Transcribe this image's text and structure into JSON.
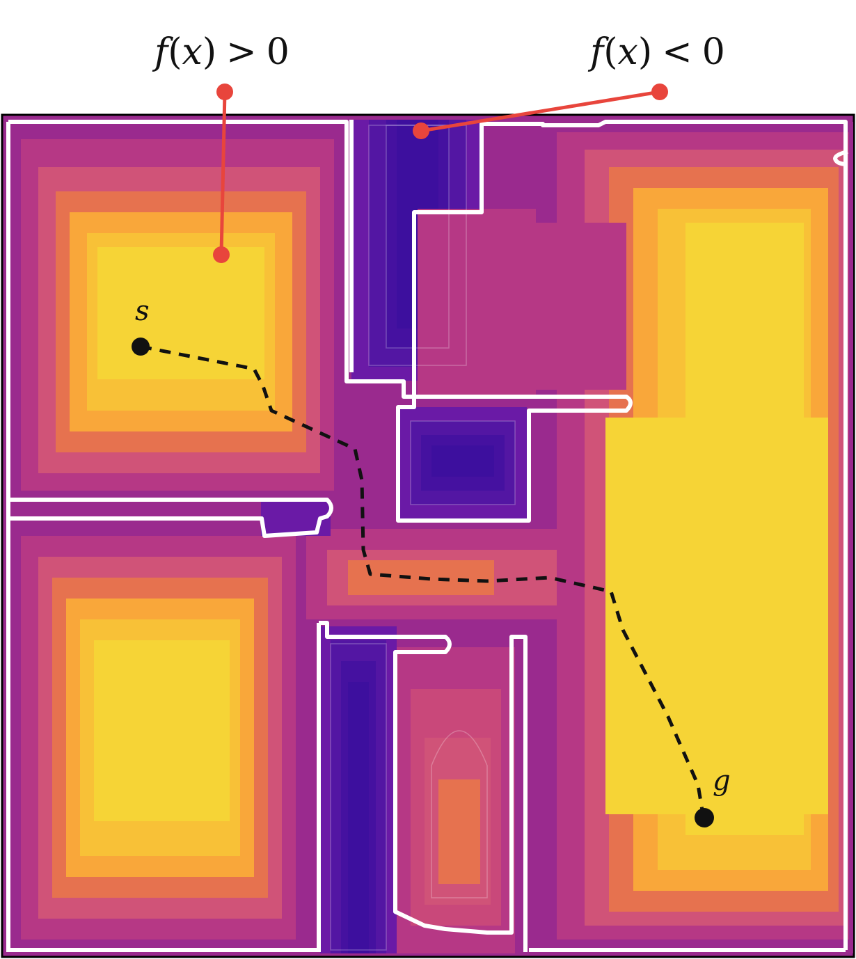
{
  "annotations": {
    "positive_label": {
      "f": "f",
      "lparen": "(",
      "x": "x",
      "rparen": ")",
      "relation": ">",
      "zero": "0"
    },
    "negative_label": {
      "f": "f",
      "lparen": "(",
      "x": "x",
      "rparen": ")",
      "relation": "<",
      "zero": "0"
    }
  },
  "points": {
    "start_label": "s",
    "goal_label": "g"
  },
  "colors": {
    "deep_negative": "#3d0f9e",
    "negative": "#6a1aa6",
    "boundary": "#ffffff",
    "low_positive": "#9a2a8e",
    "mid_positive": "#c9487a",
    "warm": "#e6724f",
    "high_positive": "#f9a73a",
    "peak_positive": "#f6d436",
    "annotation_pointer": "#e8453c",
    "path": "#111111"
  }
}
